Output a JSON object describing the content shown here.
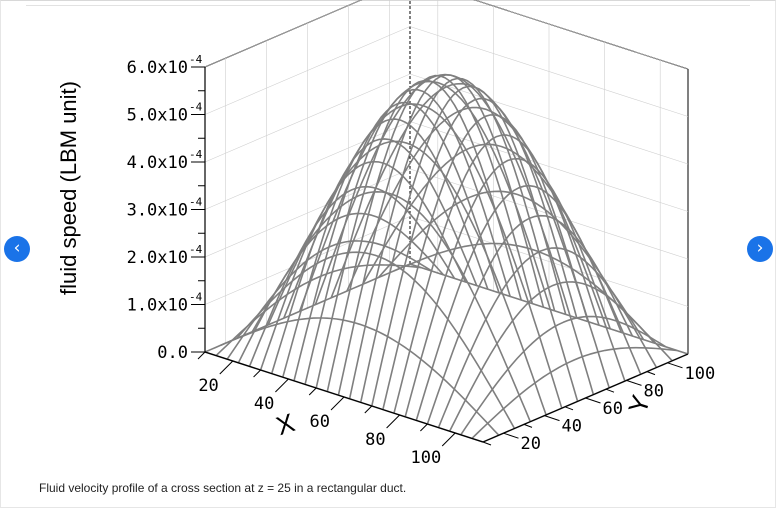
{
  "navigation": {
    "prev_glyph": "‹",
    "next_glyph": "›",
    "prev_icon": "chevron-left-icon",
    "next_icon": "chevron-right-icon"
  },
  "caption": "Fluid velocity profile of a cross section at z = 25 in a rectangular duct.",
  "colors": {
    "accent": "#1a73e8",
    "surface": "#7f7f7f",
    "axis": "#000000",
    "grid": "#cfcfcf"
  },
  "chart_data": {
    "type": "surface",
    "title": "",
    "zlabel": "fluid speed (LBM unit)",
    "xlabel": "X",
    "ylabel": "Y",
    "z_ticks": [
      "0.0",
      "1.0x10",
      "2.0x10",
      "3.0x10",
      "4.0x10",
      "5.0x10",
      "6.0x10"
    ],
    "z_tick_exponents": [
      "",
      "-4",
      "-4",
      "-4",
      "-4",
      "-4",
      "-4"
    ],
    "x_ticks": [
      "20",
      "40",
      "60",
      "80",
      "100"
    ],
    "y_ticks": [
      "20",
      "40",
      "60",
      "80",
      "100"
    ],
    "xlim": [
      10,
      110
    ],
    "ylim": [
      10,
      110
    ],
    "zlim": [
      0,
      0.0006
    ],
    "peak_value": 0.00058,
    "peak_location": {
      "x": 60,
      "y": 60
    },
    "profile": "z = peak * sin(pi*(x-10)/100) * sin(pi*(y-10)/100)",
    "grid_x_lines": 26,
    "grid_y_lines": 14
  }
}
